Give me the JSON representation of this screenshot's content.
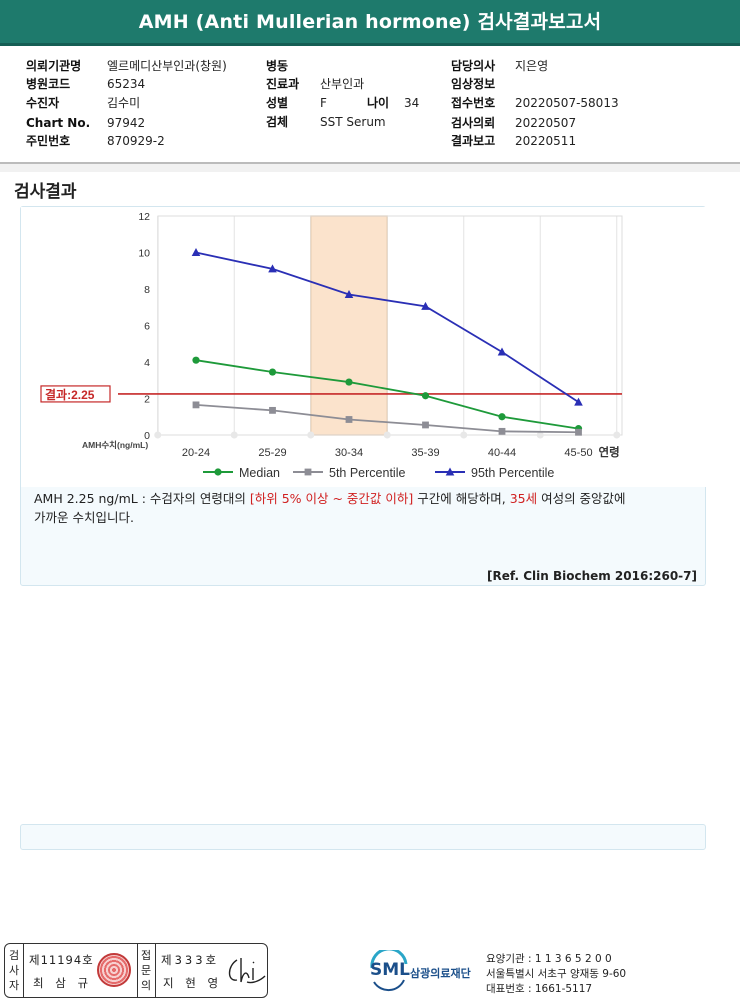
{
  "report": {
    "title": "AMH (Anti Mullerian hormone) 검사결과보고서",
    "section_title": "검사결과"
  },
  "info": {
    "hospital_label": "의뢰기관명",
    "hospital": "엘르메디산부인과(창원)",
    "code_label": "병원코드",
    "code": "65234",
    "patient_label": "수진자",
    "patient": "김수미",
    "chart_label": "Chart No.",
    "chart": "97942",
    "resident_label": "주민번호",
    "resident": "870929-2",
    "ward_label": "병동",
    "ward": "",
    "dept_label": "진료과",
    "dept": "산부인과",
    "sex_label": "성별",
    "sex": "F",
    "age_label": "나이",
    "age": "34",
    "specimen_label": "검체",
    "specimen": "SST Serum",
    "doctor_label": "담당의사",
    "doctor": "지은영",
    "clinical_label": "임상정보",
    "clinical": "",
    "receipt_label": "접수번호",
    "receipt": "20220507-58013",
    "request_label": "검사의뢰",
    "request": "20220507",
    "report_label": "결과보고",
    "report_date": "20220511"
  },
  "chart_data": {
    "type": "line",
    "categories": [
      "20-24",
      "25-29",
      "30-34",
      "35-39",
      "40-44",
      "45-50"
    ],
    "x_axis_suffix": "연령",
    "y_axis_label": "AMH수치(ng/mL)",
    "ylim": [
      0,
      12
    ],
    "yticks": [
      "0",
      "2",
      "4",
      "6",
      "8",
      "10",
      "12"
    ],
    "highlight_category": "30-34",
    "result_line": {
      "value": 2.25,
      "label": "결과:2.25",
      "color": "#c62828"
    },
    "series": [
      {
        "name": "Median",
        "color": "#1e9a3a",
        "marker": "circle",
        "values": [
          4.1,
          3.45,
          2.9,
          2.15,
          1.0,
          0.35
        ]
      },
      {
        "name": "5th Percentile",
        "color": "#8d8d95",
        "marker": "square",
        "values": [
          1.65,
          1.35,
          0.85,
          0.55,
          0.2,
          0.15
        ]
      },
      {
        "name": "95th Percentile",
        "color": "#2a2fb5",
        "marker": "triangle",
        "values": [
          10.0,
          9.1,
          7.7,
          7.05,
          4.55,
          1.8
        ]
      }
    ],
    "grid": "vertical"
  },
  "description": {
    "part1": "AMH  2.25 ng/mL : 수검자의 연령대의 ",
    "red1": "[하위 5% 이상 ~ 중간값 이하]",
    "part2": " 구간에 해당하며, ",
    "red2": "35세",
    "part3": " 여성의 중앙값에",
    "line2": "가까운 수치입니다.",
    "reference": "[Ref. Clin Biochem 2016:260-7]"
  },
  "footer": {
    "tester_label": "검사자",
    "tester_no": "제11194호",
    "tester_name": "최 삼 규",
    "reviewer_label": "접문의",
    "reviewer_no": "제333호",
    "reviewer_name": "지 현 영",
    "sml": "SML",
    "org_name": "삼광의료재단",
    "inst_line1": "요양기관 : 1 1 3 6 5 2 0 0",
    "inst_line2": "서울특별시 서초구 양재동 9-60",
    "inst_line3": "대표번호 : 1661-5117"
  }
}
